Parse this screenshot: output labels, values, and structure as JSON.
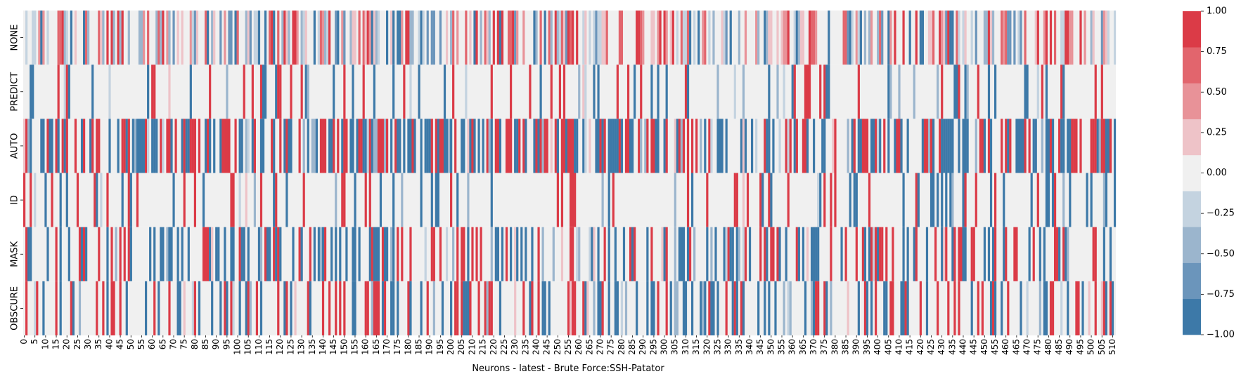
{
  "chart_data": {
    "type": "heatmap",
    "title": "",
    "xlabel": "Neurons - latest - Brute Force:SSH-Patator",
    "ylabel": "",
    "rows": [
      "NONE",
      "PREDICT",
      "AUTO",
      "ID",
      "MASK",
      "OBSCURE"
    ],
    "n_columns": 512,
    "x_tick_step": 5,
    "value_range": [
      -1.0,
      1.0
    ],
    "colorbar": {
      "ticks": [
        "1.00",
        "0.75",
        "0.50",
        "0.25",
        "0.00",
        "−0.25",
        "−0.50",
        "−0.75",
        "−1.00"
      ],
      "levels": 9,
      "colors": [
        "#3d79a8",
        "#6b95bb",
        "#9bb5cd",
        "#c4d3e0",
        "#f0f0f0",
        "#eec3c8",
        "#e89298",
        "#e2656d",
        "#db3b47"
      ]
    },
    "rows_data": [
      {
        "name": "NONE",
        "background": 0.0,
        "pattern": "mixed"
      },
      {
        "name": "PREDICT",
        "background": 0.0,
        "pattern": "sparse"
      },
      {
        "name": "AUTO",
        "background": 0.0,
        "pattern": "dense"
      },
      {
        "name": "ID",
        "background": 0.0,
        "pattern": "sparse"
      },
      {
        "name": "MASK",
        "background": 0.0,
        "pattern": "medium"
      },
      {
        "name": "OBSCURE",
        "background": 0.0,
        "pattern": "medium"
      }
    ]
  }
}
